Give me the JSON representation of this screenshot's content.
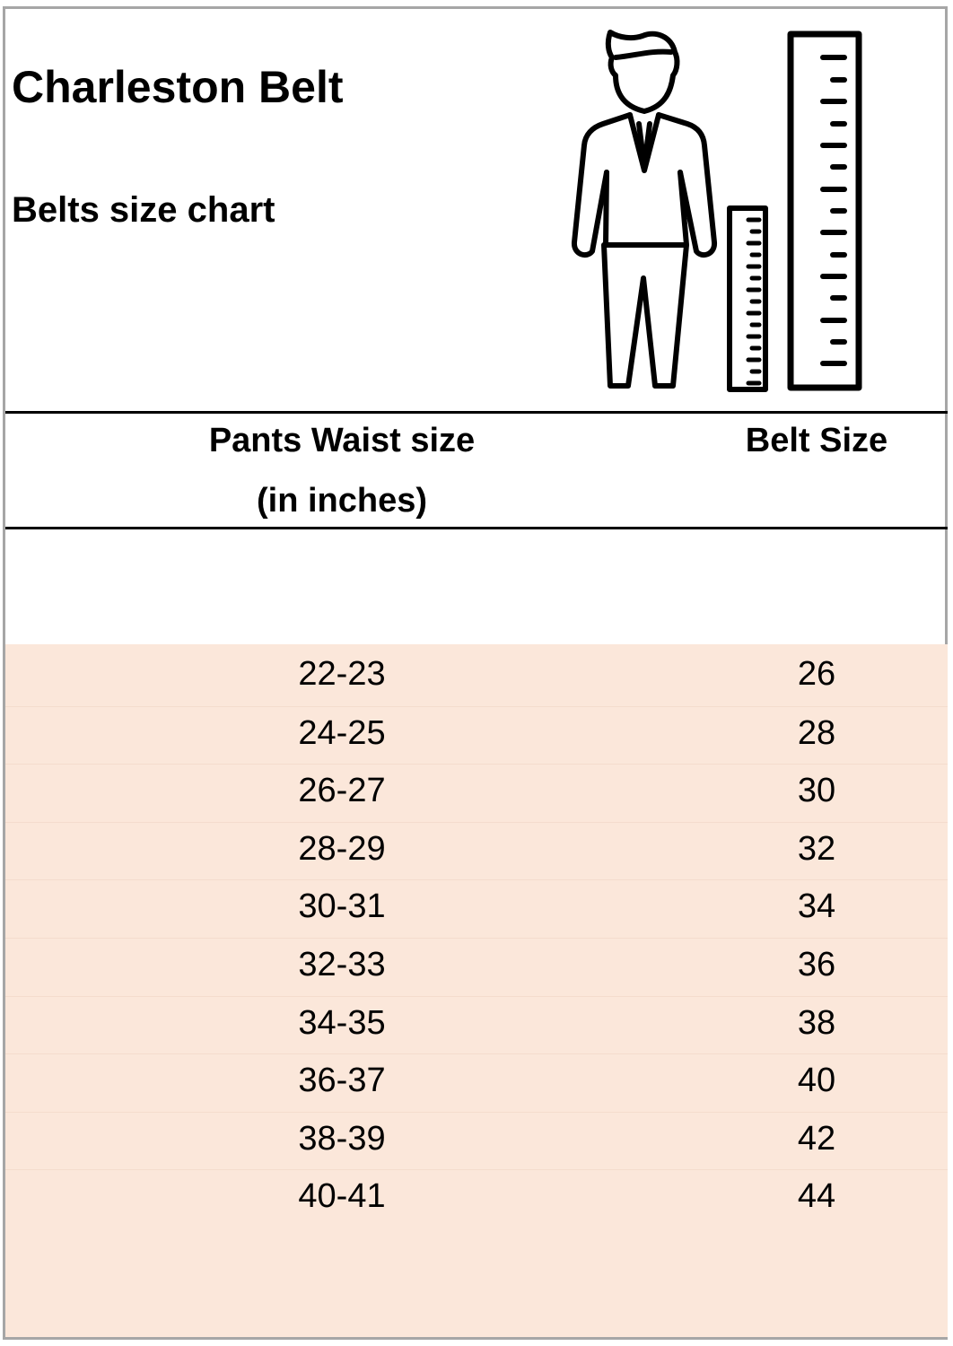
{
  "title": "Charleston Belt",
  "subtitle": "Belts size chart",
  "illustration": {
    "icon": "man-with-rulers-icon"
  },
  "table": {
    "headers": {
      "waist": "Pants Waist size",
      "waist_unit": "(in inches)",
      "belt": "Belt Size"
    },
    "rows": [
      {
        "waist": "22-23",
        "belt": "26"
      },
      {
        "waist": "24-25",
        "belt": "28"
      },
      {
        "waist": "26-27",
        "belt": "30"
      },
      {
        "waist": "28-29",
        "belt": "32"
      },
      {
        "waist": "30-31",
        "belt": "34"
      },
      {
        "waist": "32-33",
        "belt": "36"
      },
      {
        "waist": "34-35",
        "belt": "38"
      },
      {
        "waist": "36-37",
        "belt": "40"
      },
      {
        "waist": "38-39",
        "belt": "42"
      },
      {
        "waist": "40-41",
        "belt": "44"
      }
    ],
    "row_fill": "#fbe7da"
  }
}
